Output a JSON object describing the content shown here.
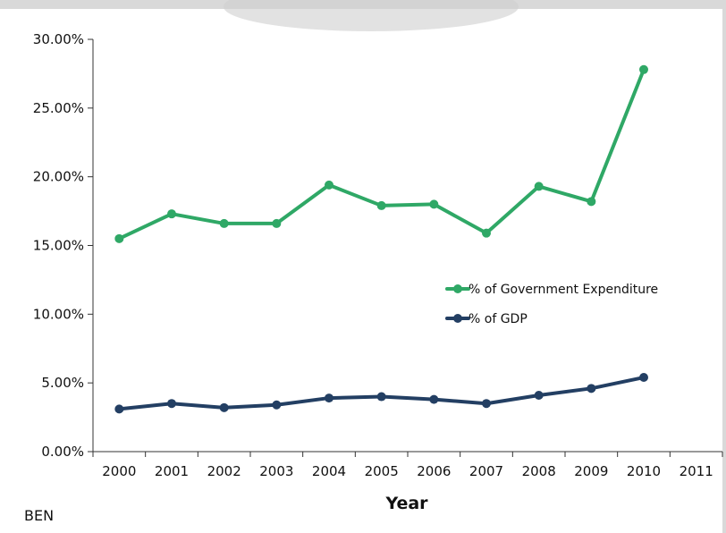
{
  "country_label": "BEN",
  "chart_data": {
    "type": "line",
    "title": "",
    "xlabel": "Year",
    "ylabel": "",
    "categories": [
      "2000",
      "2001",
      "2002",
      "2003",
      "2004",
      "2005",
      "2006",
      "2007",
      "2008",
      "2009",
      "2010",
      "2011"
    ],
    "ylim": [
      0,
      30
    ],
    "y_ticks": [
      0,
      5,
      10,
      15,
      20,
      25,
      30
    ],
    "y_tick_labels": [
      "0.00%",
      "5.00%",
      "10.00%",
      "15.00%",
      "20.00%",
      "25.00%",
      "30.00%"
    ],
    "grid": false,
    "legend_position": "center-right",
    "series": [
      {
        "name": "% of Government Expenditure",
        "color": "#2fa866",
        "values": [
          15.5,
          17.3,
          16.6,
          16.6,
          19.4,
          17.9,
          18.0,
          15.9,
          19.3,
          18.2,
          27.8,
          null
        ]
      },
      {
        "name": "% of GDP",
        "color": "#233f63",
        "values": [
          3.1,
          3.5,
          3.2,
          3.4,
          3.9,
          4.0,
          3.8,
          3.5,
          4.1,
          4.6,
          5.4,
          null
        ]
      }
    ]
  }
}
